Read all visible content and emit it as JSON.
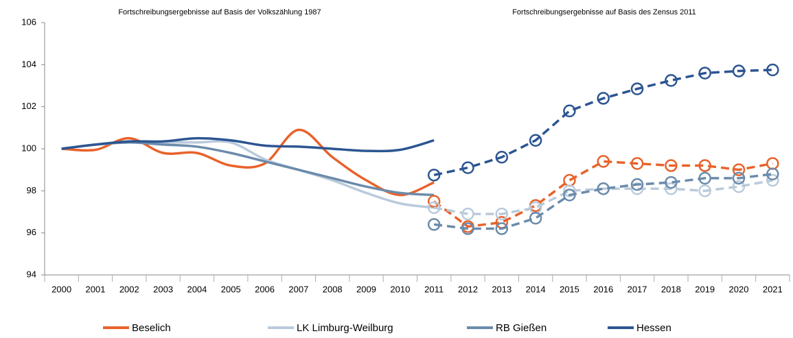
{
  "chart_data": {
    "type": "line",
    "annotations": [
      "Fortschreibungsergebnisse auf Basis der Volkszählung 1987",
      "Fortschreibungsergebnisse auf Basis des Zensus 2011"
    ],
    "categories": [
      "2000",
      "2001",
      "2002",
      "2003",
      "2004",
      "2005",
      "2006",
      "2007",
      "2008",
      "2009",
      "2010",
      "2011",
      "2012",
      "2013",
      "2014",
      "2015",
      "2016",
      "2017",
      "2018",
      "2019",
      "2020",
      "2021"
    ],
    "ylim": [
      94,
      106
    ],
    "yticks": [
      94,
      96,
      98,
      100,
      102,
      104,
      106
    ],
    "series": [
      {
        "name": "Beselich",
        "color": "#e8622a",
        "values": [
          100,
          99.95,
          100.5,
          99.8,
          99.8,
          99.2,
          99.3,
          100.9,
          99.6,
          98.5,
          97.8,
          98.4,
          null,
          null,
          null,
          null,
          null,
          null,
          null,
          null,
          null,
          null
        ],
        "zensus_values": [
          null,
          null,
          null,
          null,
          null,
          null,
          null,
          null,
          null,
          null,
          null,
          97.5,
          96.3,
          96.5,
          97.3,
          98.5,
          99.4,
          99.3,
          99.2,
          99.2,
          99.0,
          99.3
        ]
      },
      {
        "name": "LK Limburg-Weilburg",
        "color": "#b9cadb",
        "values": [
          100,
          100.2,
          100.3,
          100.3,
          100.3,
          100.3,
          99.5,
          99.0,
          98.5,
          97.9,
          97.4,
          97.2,
          null,
          null,
          null,
          null,
          null,
          null,
          null,
          null,
          null,
          null
        ],
        "zensus_values": [
          null,
          null,
          null,
          null,
          null,
          null,
          null,
          null,
          null,
          null,
          null,
          97.2,
          96.9,
          96.9,
          97.2,
          98.0,
          98.1,
          98.1,
          98.1,
          98.0,
          98.2,
          98.5
        ]
      },
      {
        "name": "RB Gießen",
        "color": "#6b8bab",
        "values": [
          100,
          100.2,
          100.3,
          100.2,
          100.1,
          99.8,
          99.4,
          99.0,
          98.6,
          98.2,
          97.9,
          97.8,
          null,
          null,
          null,
          null,
          null,
          null,
          null,
          null,
          null,
          null
        ],
        "zensus_values": [
          null,
          null,
          null,
          null,
          null,
          null,
          null,
          null,
          null,
          null,
          null,
          96.4,
          96.2,
          96.2,
          96.7,
          97.8,
          98.1,
          98.3,
          98.4,
          98.6,
          98.6,
          98.8
        ]
      },
      {
        "name": "Hessen",
        "color": "#2c5592",
        "values": [
          100,
          100.2,
          100.35,
          100.35,
          100.5,
          100.4,
          100.15,
          100.1,
          100.0,
          99.9,
          99.95,
          100.4,
          null,
          null,
          null,
          null,
          null,
          null,
          null,
          null,
          null,
          null
        ],
        "zensus_values": [
          null,
          null,
          null,
          null,
          null,
          null,
          null,
          null,
          null,
          null,
          null,
          98.75,
          99.1,
          99.6,
          100.4,
          101.8,
          102.4,
          102.85,
          103.25,
          103.6,
          103.7,
          103.75
        ]
      }
    ]
  }
}
